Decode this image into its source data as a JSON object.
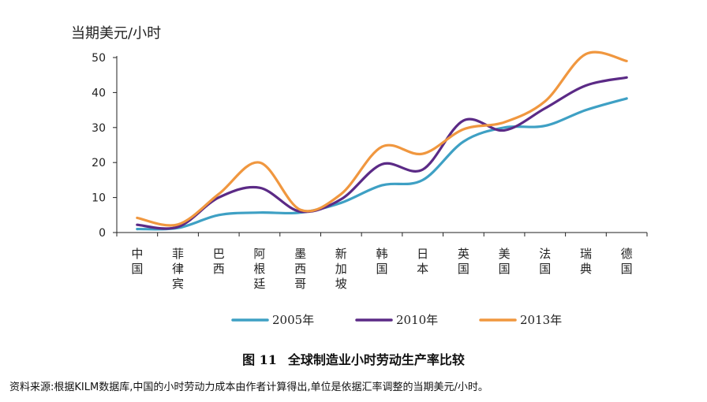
{
  "unit_label": "当期美元/小时",
  "figure": {
    "number": "图 11",
    "title": "全球制造业小时劳动生产率比较"
  },
  "source_note": "资料来源:根据KILM数据库,中国的小时劳动力成本由作者计算得出,单位是依据汇率调整的当期美元/小时。",
  "chart_data": {
    "type": "line",
    "smooth": true,
    "categories": [
      "中国",
      "菲律宾",
      "巴西",
      "阿根廷",
      "墨西哥",
      "新加坡",
      "韩国",
      "日本",
      "英国",
      "美国",
      "法国",
      "瑞典",
      "德国"
    ],
    "ylim": [
      0,
      50
    ],
    "yticks": [
      0,
      10,
      20,
      30,
      40,
      50
    ],
    "grid": false,
    "legend_position": "bottom",
    "series": [
      {
        "name": "2005年",
        "color": "#3ea0c4",
        "values": [
          1,
          1.3,
          5,
          5.7,
          5.7,
          8.5,
          13.5,
          15,
          26,
          30,
          30.5,
          35,
          38.3
        ]
      },
      {
        "name": "2010年",
        "color": "#5b2a86",
        "values": [
          2.2,
          1.6,
          10,
          12.8,
          6,
          9.5,
          19.5,
          18,
          32,
          29.2,
          35.5,
          42,
          44.3
        ]
      },
      {
        "name": "2013年",
        "color": "#f0973f",
        "values": [
          4.2,
          2.3,
          11,
          20,
          6.5,
          11,
          24.5,
          22.5,
          29.5,
          31.5,
          37.5,
          51,
          49
        ]
      }
    ]
  }
}
